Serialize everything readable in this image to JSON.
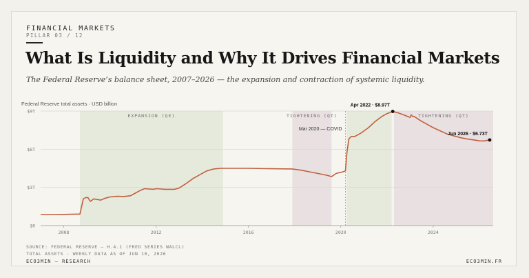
{
  "header": {
    "kicker": "FINANCIAL MARKETS",
    "pillar": "PILLAR 03 / 12",
    "title": "What Is Liquidity and Why It Drives Financial Markets",
    "subtitle": "The Federal Reserve’s balance sheet, 2007–2026 — the expansion and contraction of systemic liquidity."
  },
  "colors": {
    "line": "#c0603d",
    "qe_band": "#e6eadc",
    "tightening_band": "#e8e0e1",
    "text": "#161616"
  },
  "chart_data": {
    "type": "line",
    "title": "",
    "ylabel": "Federal Reserve total assets · USD billion",
    "xlabel": "",
    "xlim": [
      2007,
      2026.6
    ],
    "ylim": [
      0,
      9
    ],
    "x_ticks": [
      2008,
      2012,
      2016,
      2020,
      2024
    ],
    "x_tick_labels": [
      "2008",
      "2012",
      "2016",
      "2020",
      "2024"
    ],
    "y_ticks": [
      0,
      3,
      6,
      9
    ],
    "y_tick_labels": [
      "$0",
      "$3T",
      "$6T",
      "$9T"
    ],
    "grid": "horizontal",
    "bands": [
      {
        "label": "EXPANSION (QE)",
        "start": 2008.7,
        "end": 2014.9,
        "kind": "qe"
      },
      {
        "label": "TIGHTENING (QT)",
        "start": 2017.9,
        "end": 2019.6,
        "kind": "qt"
      },
      {
        "label": "",
        "start": 2020.25,
        "end": 2022.2,
        "kind": "qe"
      },
      {
        "label": "TIGHTENING (QT)",
        "start": 2022.3,
        "end": 2026.6,
        "kind": "qt"
      }
    ],
    "vlines": [
      {
        "x": 2020.2,
        "label": "Mar 2020 — COVID"
      }
    ],
    "annotations": [
      {
        "x": 2022.25,
        "y": 8.97,
        "label": "Apr 2022 · $8.97T"
      },
      {
        "x": 2026.45,
        "y": 6.73,
        "label": "Jun 2026 · $6.73T"
      }
    ],
    "series": [
      {
        "x": [
          2007.0,
          2007.5,
          2008.0,
          2008.5,
          2008.7,
          2008.85,
          2008.95,
          2009.05,
          2009.15,
          2009.3,
          2009.45,
          2009.6,
          2009.8,
          2010.0,
          2010.3,
          2010.6,
          2010.9,
          2011.1,
          2011.3,
          2011.5,
          2011.9,
          2012.0,
          2012.4,
          2012.8,
          2013.0,
          2013.3,
          2013.6,
          2013.9,
          2014.2,
          2014.5,
          2014.8,
          2015.0,
          2016.0,
          2017.0,
          2017.9,
          2018.3,
          2018.7,
          2019.0,
          2019.4,
          2019.6,
          2019.8,
          2020.05,
          2020.2,
          2020.27,
          2020.35,
          2020.45,
          2020.6,
          2020.9,
          2021.2,
          2021.5,
          2021.8,
          2022.0,
          2022.25,
          2022.5,
          2022.8,
          2023.0,
          2023.05,
          2023.1,
          2023.2,
          2023.5,
          2023.8,
          2024.0,
          2024.3,
          2024.6,
          2024.9,
          2025.2,
          2025.5,
          2025.8,
          2026.0,
          2026.2,
          2026.45
        ],
        "y": [
          0.87,
          0.87,
          0.88,
          0.9,
          0.9,
          2.1,
          2.2,
          2.2,
          1.9,
          2.1,
          2.05,
          2.0,
          2.15,
          2.25,
          2.3,
          2.28,
          2.35,
          2.55,
          2.75,
          2.9,
          2.85,
          2.9,
          2.85,
          2.85,
          2.95,
          3.3,
          3.7,
          4.0,
          4.3,
          4.45,
          4.5,
          4.5,
          4.5,
          4.47,
          4.45,
          4.35,
          4.2,
          4.1,
          3.95,
          3.85,
          4.1,
          4.2,
          4.3,
          5.8,
          6.8,
          7.0,
          7.0,
          7.3,
          7.7,
          8.2,
          8.6,
          8.8,
          8.97,
          8.85,
          8.65,
          8.5,
          8.7,
          8.6,
          8.55,
          8.2,
          7.9,
          7.7,
          7.45,
          7.2,
          7.05,
          6.9,
          6.8,
          6.72,
          6.66,
          6.65,
          6.73
        ]
      }
    ]
  },
  "footer": {
    "source_line1": "SOURCE: FEDERAL RESERVE — H.4.1 (FRED SERIES WALCL)",
    "source_line2": "TOTAL ASSETS · WEEKLY DATA AS OF JUN 10, 2026",
    "brand_left": "ECO3MIN — RESEARCH",
    "brand_right": "ECO3MIN.FR"
  }
}
